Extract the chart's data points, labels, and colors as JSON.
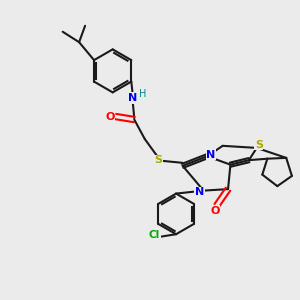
{
  "bg_color": "#ebebeb",
  "bond_color": "#1a1a1a",
  "atom_colors": {
    "N": "#0000ee",
    "O": "#ff0000",
    "S": "#aaaa00",
    "Cl": "#00aa00",
    "H": "#008888",
    "C": "#1a1a1a"
  },
  "figsize": [
    3.0,
    3.0
  ],
  "dpi": 100
}
